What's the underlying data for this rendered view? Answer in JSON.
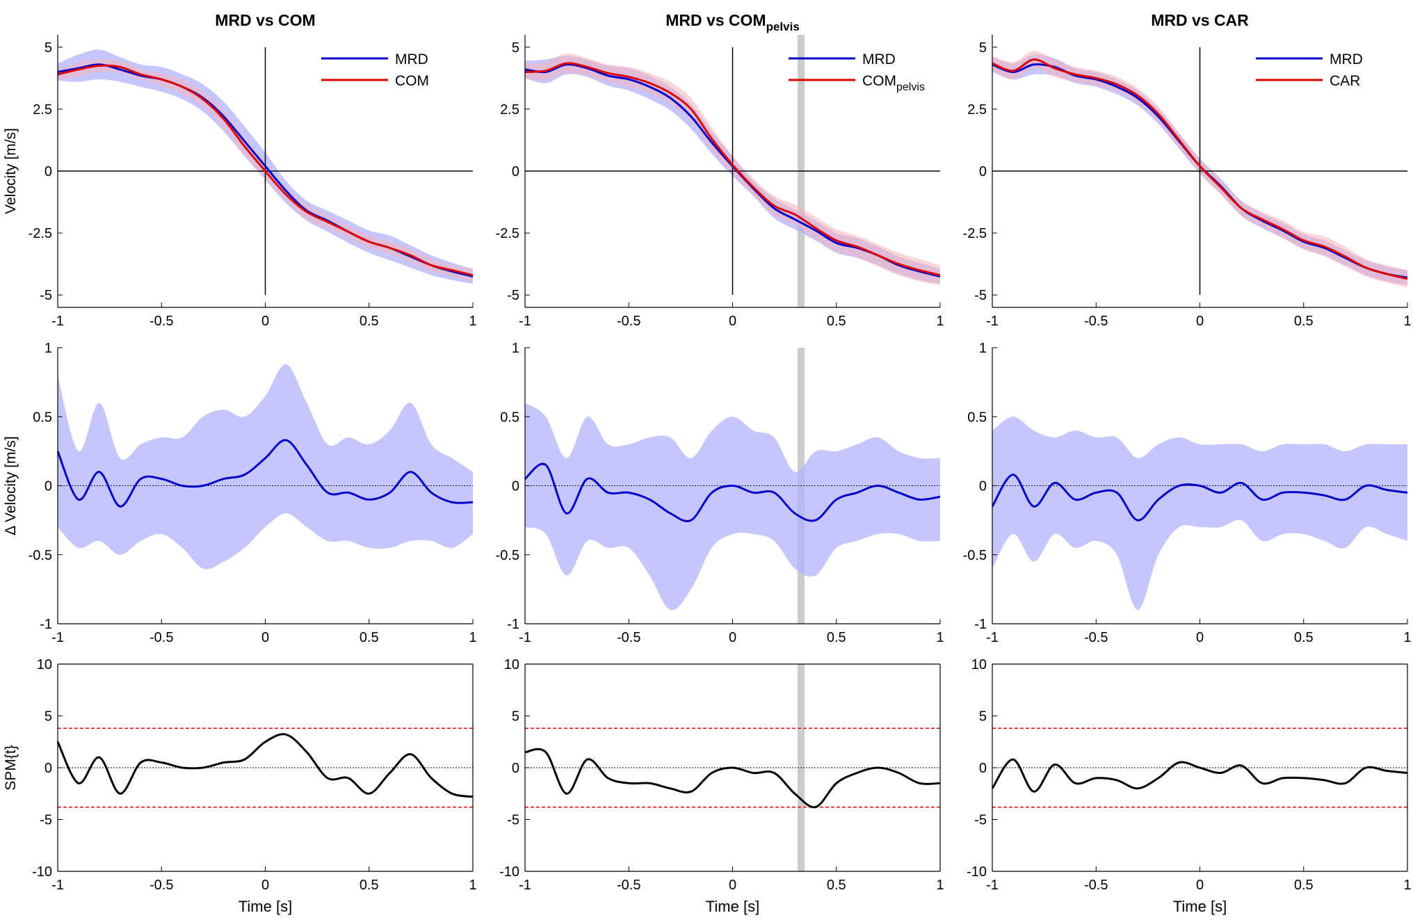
{
  "colors": {
    "mrd": "#0000cc",
    "mrd_band": "#b3b3ff",
    "ref": "#dd0000",
    "ref_band": "#f5b5b8",
    "spm_line": "#000000",
    "threshold": "#dd0000",
    "highlight": "#cccccc"
  },
  "columns": [
    {
      "title": "MRD vs COM",
      "title_sub": "",
      "legend": [
        {
          "label": "MRD",
          "sub": ""
        },
        {
          "label": "COM",
          "sub": ""
        }
      ]
    },
    {
      "title": "MRD vs COM",
      "title_sub": "pelvis",
      "legend": [
        {
          "label": "MRD",
          "sub": ""
        },
        {
          "label": "COM",
          "sub": "pelvis"
        }
      ]
    },
    {
      "title": "MRD vs CAR",
      "title_sub": "",
      "legend": [
        {
          "label": "MRD",
          "sub": ""
        },
        {
          "label": "CAR",
          "sub": ""
        }
      ]
    }
  ],
  "rows": [
    {
      "ylabel": "Velocity [m/s]",
      "ylim": [
        -5.5,
        5.5
      ],
      "ticks": [
        "5",
        "2.5",
        "0",
        "-2.5",
        "-5"
      ]
    },
    {
      "ylabel": "Δ Velocity [m/s]",
      "ylim": [
        -1,
        1
      ],
      "ticks": [
        "1",
        "0.5",
        "0",
        "-0.5",
        "-1"
      ]
    },
    {
      "ylabel": "SPM{t}",
      "ylim": [
        -10,
        10
      ],
      "ticks": [
        "10",
        "5",
        "0",
        "-5",
        "-10"
      ]
    }
  ],
  "x_axis": {
    "label": "Time [s]",
    "xlim": [
      -1,
      1
    ],
    "ticks": [
      "-1",
      "-0.5",
      "0",
      "0.5",
      "1"
    ]
  },
  "chart_data": [
    {
      "type": "line",
      "title": "MRD vs COM",
      "xlabel": "Time [s]",
      "ylabel": "Velocity [m/s]",
      "xlim": [
        -1,
        1
      ],
      "ylim": [
        -5.5,
        5.5
      ],
      "x": [
        -1,
        -0.9,
        -0.8,
        -0.7,
        -0.6,
        -0.5,
        -0.4,
        -0.3,
        -0.2,
        -0.1,
        0,
        0.1,
        0.2,
        0.3,
        0.4,
        0.5,
        0.6,
        0.7,
        0.8,
        0.9,
        1
      ],
      "series": [
        {
          "name": "MRD",
          "values": [
            4.0,
            4.15,
            4.3,
            4.1,
            3.85,
            3.7,
            3.4,
            2.95,
            2.2,
            1.2,
            0.2,
            -0.8,
            -1.6,
            -2.0,
            -2.45,
            -2.85,
            -3.1,
            -3.45,
            -3.8,
            -4.05,
            -4.25
          ],
          "band_upper": [
            4.35,
            4.7,
            4.9,
            4.6,
            4.3,
            4.2,
            3.9,
            3.5,
            2.8,
            1.8,
            0.75,
            -0.4,
            -1.2,
            -1.6,
            -2.0,
            -2.4,
            -2.6,
            -3.0,
            -3.4,
            -3.7,
            -3.95
          ],
          "band_lower": [
            3.65,
            3.6,
            3.7,
            3.6,
            3.4,
            3.2,
            2.9,
            2.4,
            1.6,
            0.6,
            -0.35,
            -1.3,
            -2.0,
            -2.45,
            -2.9,
            -3.3,
            -3.6,
            -3.9,
            -4.2,
            -4.4,
            -4.55
          ]
        },
        {
          "name": "COM",
          "values": [
            3.9,
            4.1,
            4.25,
            4.2,
            3.9,
            3.7,
            3.4,
            2.9,
            2.1,
            1.0,
            0.0,
            -0.95,
            -1.65,
            -2.05,
            -2.45,
            -2.85,
            -3.1,
            -3.4,
            -3.8,
            -4.0,
            -4.2
          ],
          "band_upper": [
            4.1,
            4.4,
            4.5,
            4.45,
            4.1,
            3.95,
            3.7,
            3.2,
            2.45,
            1.35,
            0.3,
            -0.7,
            -1.35,
            -1.8,
            -2.2,
            -2.6,
            -2.85,
            -3.15,
            -3.55,
            -3.8,
            -3.95
          ],
          "band_lower": [
            3.7,
            3.8,
            4.0,
            3.95,
            3.7,
            3.45,
            3.1,
            2.6,
            1.75,
            0.65,
            -0.3,
            -1.2,
            -1.95,
            -2.3,
            -2.7,
            -3.1,
            -3.35,
            -3.65,
            -4.05,
            -4.25,
            -4.45
          ]
        }
      ]
    },
    {
      "type": "line",
      "title": "MRD vs COM pelvis",
      "xlabel": "Time [s]",
      "ylabel": "Velocity [m/s]",
      "xlim": [
        -1,
        1
      ],
      "ylim": [
        -5.5,
        5.5
      ],
      "x": [
        -1,
        -0.9,
        -0.8,
        -0.7,
        -0.6,
        -0.5,
        -0.4,
        -0.3,
        -0.2,
        -0.1,
        0,
        0.1,
        0.2,
        0.3,
        0.4,
        0.5,
        0.6,
        0.7,
        0.8,
        0.9,
        1
      ],
      "series": [
        {
          "name": "MRD",
          "values": [
            4.1,
            4.0,
            4.3,
            4.15,
            3.85,
            3.7,
            3.4,
            2.95,
            2.2,
            1.15,
            0.2,
            -0.7,
            -1.5,
            -1.95,
            -2.4,
            -2.9,
            -3.1,
            -3.4,
            -3.8,
            -4.05,
            -4.25
          ],
          "band_upper": [
            4.45,
            4.5,
            4.65,
            4.5,
            4.25,
            4.15,
            3.85,
            3.4,
            2.7,
            1.6,
            0.6,
            -0.4,
            -1.1,
            -1.55,
            -2.0,
            -2.5,
            -2.7,
            -3.05,
            -3.45,
            -3.7,
            -3.95
          ],
          "band_lower": [
            3.75,
            3.55,
            3.9,
            3.8,
            3.45,
            3.25,
            2.9,
            2.45,
            1.7,
            0.7,
            -0.2,
            -1.0,
            -1.9,
            -2.35,
            -2.8,
            -3.3,
            -3.5,
            -3.8,
            -4.15,
            -4.4,
            -4.55
          ]
        },
        {
          "name": "COM pelvis",
          "values": [
            4.0,
            4.05,
            4.35,
            4.2,
            3.95,
            3.8,
            3.55,
            3.15,
            2.5,
            1.3,
            0.25,
            -0.65,
            -1.4,
            -1.75,
            -2.3,
            -2.8,
            -3.05,
            -3.4,
            -3.75,
            -4.0,
            -4.2
          ],
          "band_upper": [
            4.3,
            4.4,
            4.75,
            4.55,
            4.3,
            4.2,
            3.95,
            3.6,
            2.95,
            1.75,
            0.6,
            -0.3,
            -1.0,
            -1.35,
            -1.85,
            -2.35,
            -2.6,
            -2.95,
            -3.3,
            -3.55,
            -3.8
          ],
          "band_lower": [
            3.7,
            3.7,
            3.95,
            3.85,
            3.6,
            3.4,
            3.15,
            2.7,
            2.05,
            0.85,
            -0.1,
            -1.0,
            -1.8,
            -2.15,
            -2.75,
            -3.25,
            -3.5,
            -3.85,
            -4.2,
            -4.45,
            -4.6
          ]
        }
      ],
      "highlight_x": 0.33
    },
    {
      "type": "line",
      "title": "MRD vs CAR",
      "xlabel": "Time [s]",
      "ylabel": "Velocity [m/s]",
      "xlim": [
        -1,
        1
      ],
      "ylim": [
        -5.5,
        5.5
      ],
      "x": [
        -1,
        -0.9,
        -0.8,
        -0.7,
        -0.6,
        -0.5,
        -0.4,
        -0.3,
        -0.2,
        -0.1,
        0,
        0.1,
        0.2,
        0.3,
        0.4,
        0.5,
        0.6,
        0.7,
        0.8,
        0.9,
        1
      ],
      "series": [
        {
          "name": "MRD",
          "values": [
            4.3,
            4.0,
            4.3,
            4.2,
            3.85,
            3.7,
            3.4,
            2.95,
            2.2,
            1.2,
            0.2,
            -0.6,
            -1.5,
            -2.0,
            -2.4,
            -2.85,
            -3.1,
            -3.5,
            -3.9,
            -4.15,
            -4.3
          ],
          "band_upper": [
            4.6,
            4.35,
            4.7,
            4.55,
            4.15,
            4.0,
            3.7,
            3.25,
            2.5,
            1.5,
            0.5,
            -0.3,
            -1.2,
            -1.7,
            -2.1,
            -2.55,
            -2.8,
            -3.2,
            -3.6,
            -3.85,
            -4.0
          ],
          "band_lower": [
            4.0,
            3.7,
            3.9,
            3.85,
            3.55,
            3.4,
            3.1,
            2.65,
            1.9,
            0.9,
            -0.1,
            -0.9,
            -1.8,
            -2.3,
            -2.7,
            -3.15,
            -3.4,
            -3.8,
            -4.2,
            -4.45,
            -4.6
          ]
        },
        {
          "name": "CAR",
          "values": [
            4.35,
            4.05,
            4.5,
            4.15,
            3.9,
            3.75,
            3.5,
            3.05,
            2.3,
            1.25,
            0.2,
            -0.65,
            -1.5,
            -1.95,
            -2.35,
            -2.8,
            -3.05,
            -3.45,
            -3.9,
            -4.15,
            -4.35
          ],
          "band_upper": [
            4.65,
            4.4,
            4.85,
            4.5,
            4.2,
            4.05,
            3.8,
            3.35,
            2.6,
            1.55,
            0.5,
            -0.35,
            -1.2,
            -1.65,
            -2.0,
            -2.45,
            -2.65,
            -3.05,
            -3.55,
            -3.8,
            -4.0
          ],
          "band_lower": [
            4.05,
            3.7,
            4.15,
            3.8,
            3.6,
            3.45,
            3.2,
            2.75,
            2.0,
            0.95,
            -0.1,
            -0.95,
            -1.8,
            -2.25,
            -2.7,
            -3.15,
            -3.45,
            -3.85,
            -4.25,
            -4.5,
            -4.7
          ]
        }
      ]
    },
    {
      "type": "line",
      "title": "MRD vs COM",
      "xlabel": "Time [s]",
      "ylabel": "Δ Velocity [m/s]",
      "xlim": [
        -1,
        1
      ],
      "ylim": [
        -1,
        1
      ],
      "x": [
        -1,
        -0.9,
        -0.8,
        -0.7,
        -0.6,
        -0.5,
        -0.4,
        -0.3,
        -0.2,
        -0.1,
        0,
        0.1,
        0.2,
        0.3,
        0.4,
        0.5,
        0.6,
        0.7,
        0.8,
        0.9,
        1
      ],
      "series": [
        {
          "name": "Δ Velocity",
          "values": [
            0.25,
            -0.1,
            0.1,
            -0.15,
            0.05,
            0.05,
            0.0,
            0.0,
            0.05,
            0.08,
            0.2,
            0.33,
            0.15,
            -0.05,
            -0.05,
            -0.1,
            -0.05,
            0.1,
            -0.05,
            -0.12,
            -0.12
          ],
          "band_upper": [
            0.8,
            0.25,
            0.6,
            0.2,
            0.3,
            0.35,
            0.35,
            0.5,
            0.55,
            0.5,
            0.65,
            0.88,
            0.6,
            0.3,
            0.35,
            0.3,
            0.4,
            0.6,
            0.3,
            0.2,
            0.1
          ],
          "band_lower": [
            -0.3,
            -0.45,
            -0.4,
            -0.5,
            -0.4,
            -0.35,
            -0.45,
            -0.6,
            -0.55,
            -0.45,
            -0.3,
            -0.2,
            -0.3,
            -0.4,
            -0.4,
            -0.45,
            -0.45,
            -0.4,
            -0.4,
            -0.45,
            -0.35
          ]
        }
      ],
      "zero_line": 0
    },
    {
      "type": "line",
      "title": "MRD vs COM pelvis",
      "xlabel": "Time [s]",
      "ylabel": "Δ Velocity [m/s]",
      "xlim": [
        -1,
        1
      ],
      "ylim": [
        -1,
        1
      ],
      "x": [
        -1,
        -0.9,
        -0.8,
        -0.7,
        -0.6,
        -0.5,
        -0.4,
        -0.3,
        -0.2,
        -0.1,
        0,
        0.1,
        0.2,
        0.3,
        0.4,
        0.5,
        0.6,
        0.7,
        0.8,
        0.9,
        1
      ],
      "series": [
        {
          "name": "Δ Velocity",
          "values": [
            0.05,
            0.15,
            -0.2,
            0.05,
            -0.05,
            -0.05,
            -0.1,
            -0.2,
            -0.25,
            -0.05,
            0.0,
            -0.05,
            -0.05,
            -0.2,
            -0.25,
            -0.1,
            -0.05,
            0.0,
            -0.05,
            -0.1,
            -0.08
          ],
          "band_upper": [
            0.6,
            0.5,
            0.2,
            0.5,
            0.3,
            0.3,
            0.35,
            0.35,
            0.2,
            0.4,
            0.5,
            0.4,
            0.35,
            0.1,
            0.25,
            0.25,
            0.3,
            0.35,
            0.25,
            0.2,
            0.2
          ],
          "band_lower": [
            -0.3,
            -0.35,
            -0.65,
            -0.4,
            -0.45,
            -0.45,
            -0.65,
            -0.9,
            -0.75,
            -0.45,
            -0.35,
            -0.35,
            -0.4,
            -0.6,
            -0.65,
            -0.45,
            -0.4,
            -0.35,
            -0.35,
            -0.4,
            -0.4
          ]
        }
      ],
      "zero_line": 0,
      "highlight_x": 0.33
    },
    {
      "type": "line",
      "title": "MRD vs CAR",
      "xlabel": "Time [s]",
      "ylabel": "Δ Velocity [m/s]",
      "xlim": [
        -1,
        1
      ],
      "ylim": [
        -1,
        1
      ],
      "x": [
        -1,
        -0.9,
        -0.8,
        -0.7,
        -0.6,
        -0.5,
        -0.4,
        -0.3,
        -0.2,
        -0.1,
        0,
        0.1,
        0.2,
        0.3,
        0.4,
        0.5,
        0.6,
        0.7,
        0.8,
        0.9,
        1
      ],
      "series": [
        {
          "name": "Δ Velocity",
          "values": [
            -0.15,
            0.08,
            -0.15,
            0.02,
            -0.1,
            -0.05,
            -0.05,
            -0.25,
            -0.1,
            0.0,
            0.0,
            -0.05,
            0.02,
            -0.1,
            -0.05,
            -0.05,
            -0.07,
            -0.1,
            0.0,
            -0.03,
            -0.05
          ],
          "band_upper": [
            0.4,
            0.5,
            0.4,
            0.35,
            0.4,
            0.35,
            0.35,
            0.2,
            0.3,
            0.35,
            0.3,
            0.3,
            0.3,
            0.25,
            0.3,
            0.3,
            0.3,
            0.25,
            0.3,
            0.3,
            0.3
          ],
          "band_lower": [
            -0.6,
            -0.35,
            -0.55,
            -0.35,
            -0.45,
            -0.4,
            -0.5,
            -0.9,
            -0.5,
            -0.3,
            -0.3,
            -0.3,
            -0.25,
            -0.4,
            -0.35,
            -0.35,
            -0.4,
            -0.45,
            -0.3,
            -0.35,
            -0.4
          ]
        }
      ],
      "zero_line": 0
    },
    {
      "type": "line",
      "title": "MRD vs COM",
      "xlabel": "Time [s]",
      "ylabel": "SPM{t}",
      "xlim": [
        -1,
        1
      ],
      "ylim": [
        -10,
        10
      ],
      "x": [
        -1,
        -0.9,
        -0.8,
        -0.7,
        -0.6,
        -0.5,
        -0.4,
        -0.3,
        -0.2,
        -0.1,
        0,
        0.1,
        0.2,
        0.3,
        0.4,
        0.5,
        0.6,
        0.7,
        0.8,
        0.9,
        1
      ],
      "series": [
        {
          "name": "SPM{t}",
          "values": [
            2.5,
            -1.5,
            1.0,
            -2.5,
            0.5,
            0.5,
            0.0,
            0.0,
            0.5,
            0.8,
            2.5,
            3.2,
            1.5,
            -1.0,
            -1.0,
            -2.5,
            -0.5,
            1.3,
            -1.0,
            -2.5,
            -2.8
          ]
        }
      ],
      "threshold": 3.8,
      "zero_line": 0
    },
    {
      "type": "line",
      "title": "MRD vs COM pelvis",
      "xlabel": "Time [s]",
      "ylabel": "SPM{t}",
      "xlim": [
        -1,
        1
      ],
      "ylim": [
        -10,
        10
      ],
      "x": [
        -1,
        -0.9,
        -0.8,
        -0.7,
        -0.6,
        -0.5,
        -0.4,
        -0.3,
        -0.2,
        -0.1,
        0,
        0.1,
        0.2,
        0.3,
        0.4,
        0.5,
        0.6,
        0.7,
        0.8,
        0.9,
        1
      ],
      "series": [
        {
          "name": "SPM{t}",
          "values": [
            1.5,
            1.5,
            -2.5,
            0.8,
            -1.0,
            -1.5,
            -1.5,
            -2.0,
            -2.3,
            -0.5,
            0.0,
            -0.5,
            -0.5,
            -2.5,
            -3.8,
            -1.5,
            -0.5,
            0.0,
            -0.5,
            -1.5,
            -1.5
          ]
        }
      ],
      "threshold": 3.8,
      "zero_line": 0,
      "highlight_x": 0.33
    },
    {
      "type": "line",
      "title": "MRD vs CAR",
      "xlabel": "Time [s]",
      "ylabel": "SPM{t}",
      "xlim": [
        -1,
        1
      ],
      "ylim": [
        -10,
        10
      ],
      "x": [
        -1,
        -0.9,
        -0.8,
        -0.7,
        -0.6,
        -0.5,
        -0.4,
        -0.3,
        -0.2,
        -0.1,
        0,
        0.1,
        0.2,
        0.3,
        0.4,
        0.5,
        0.6,
        0.7,
        0.8,
        0.9,
        1
      ],
      "series": [
        {
          "name": "SPM{t}",
          "values": [
            -2.0,
            0.8,
            -2.3,
            0.3,
            -1.5,
            -1.0,
            -1.2,
            -2.0,
            -1.0,
            0.5,
            0.0,
            -0.5,
            0.2,
            -1.5,
            -1.0,
            -1.0,
            -1.2,
            -1.5,
            0.0,
            -0.3,
            -0.5
          ]
        }
      ],
      "threshold": 3.8,
      "zero_line": 0
    }
  ]
}
